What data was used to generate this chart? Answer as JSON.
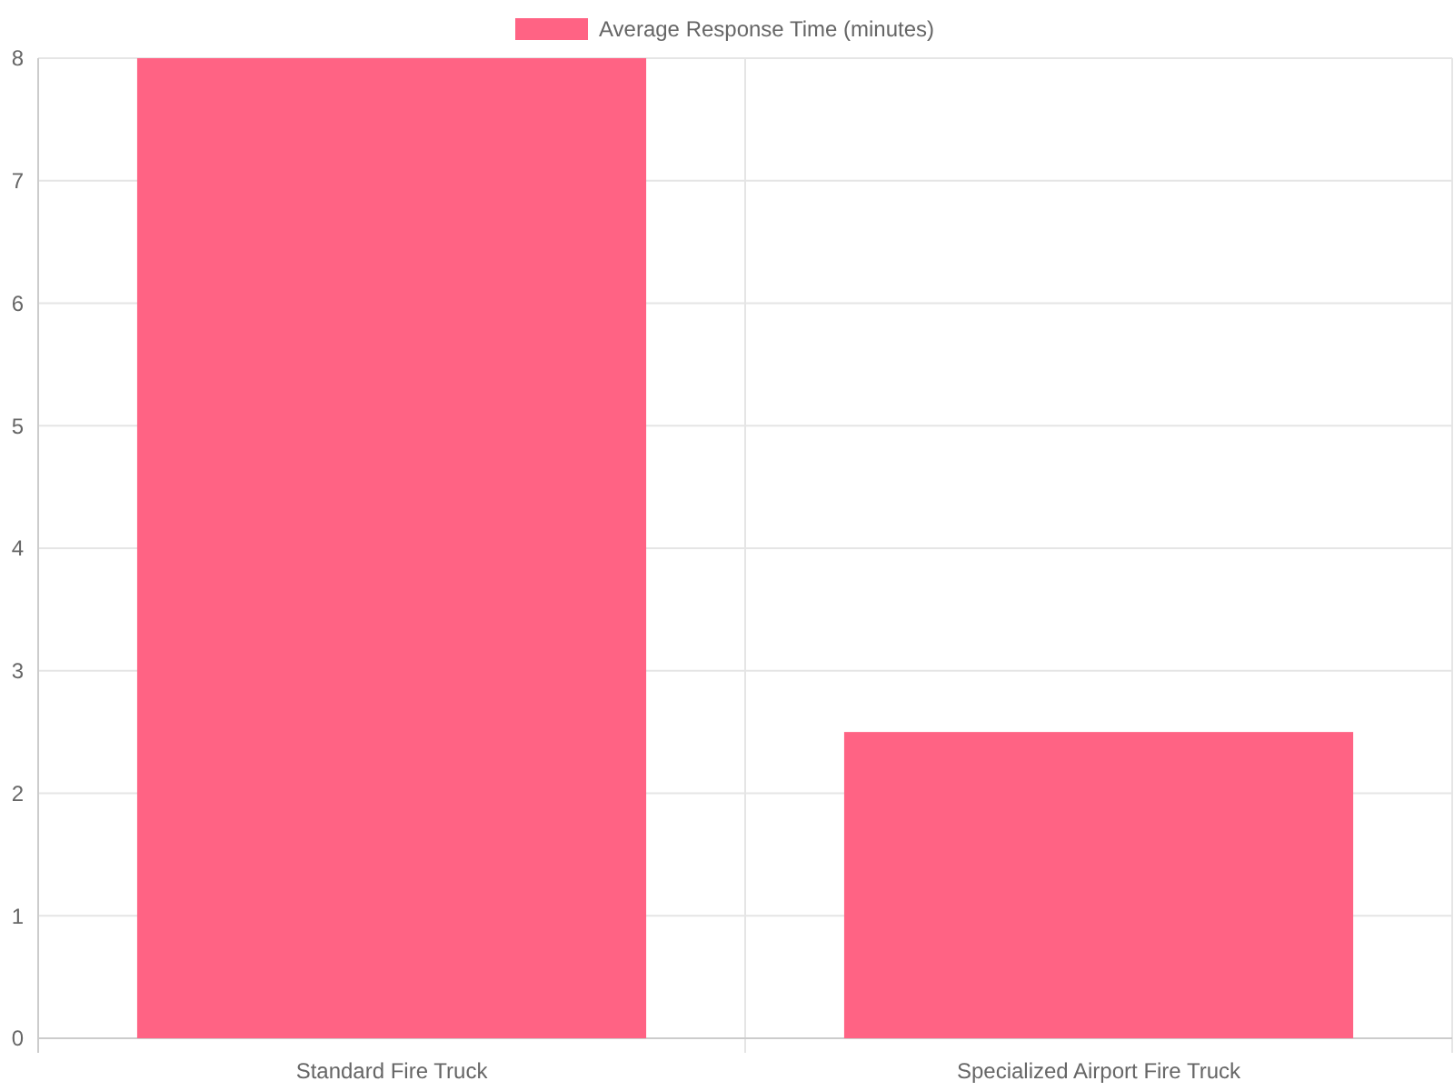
{
  "chart_data": {
    "type": "bar",
    "categories": [
      "Standard Fire Truck",
      "Specialized Airport Fire Truck"
    ],
    "series": [
      {
        "name": "Average Response Time (minutes)",
        "color": "#ff6384",
        "values": [
          8,
          2.5
        ]
      }
    ],
    "ylim": [
      0,
      8
    ],
    "yticks": [
      0,
      1,
      2,
      3,
      4,
      5,
      6,
      7,
      8
    ],
    "grid": true,
    "legend": "top"
  }
}
